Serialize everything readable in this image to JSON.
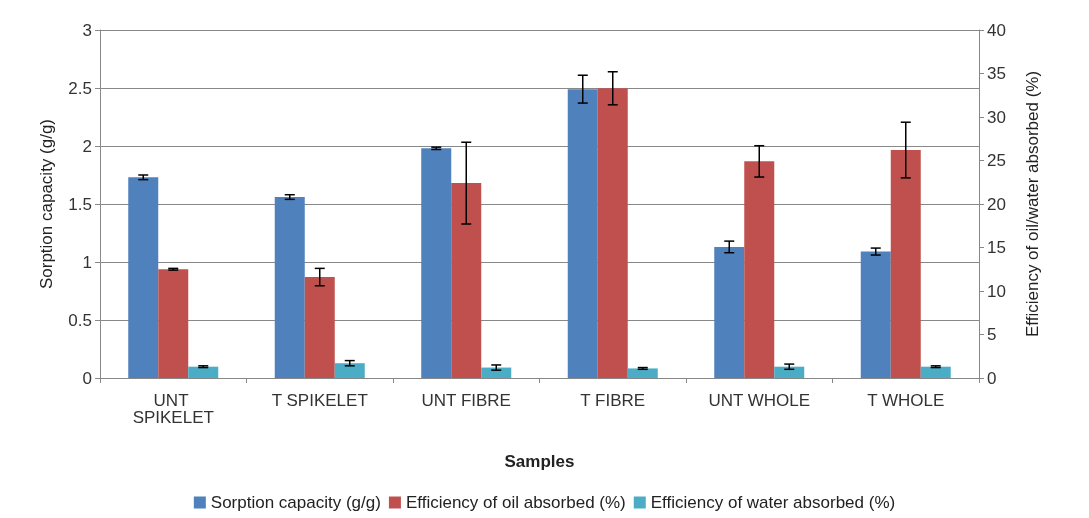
{
  "chart_data": {
    "type": "bar",
    "xlabel": "Samples",
    "ylabel": "Sorption capacity (g/g)",
    "y2label": "Efficiency of oil/water absorbed (%)",
    "categories": [
      "UNT SPIKELET",
      "T SPIKELET",
      "UNT FIBRE",
      "T FIBRE",
      "UNT WHOLE",
      "T WHOLE"
    ],
    "series": [
      {
        "name": "Sorption capacity (g/g)",
        "color": "#4f81bd",
        "values": [
          1.73,
          1.56,
          1.98,
          2.49,
          1.13,
          1.09
        ],
        "errors": [
          0.02,
          0.02,
          0.01,
          0.12,
          0.05,
          0.03
        ]
      },
      {
        "name": "Efficiency of oil absorbed (%)",
        "color": "#c0504d",
        "axis": "y2",
        "values": [
          12.5,
          11.6,
          22.4,
          33.3,
          24.9,
          26.2
        ],
        "errors": [
          0.1,
          1,
          4.7,
          1.9,
          1.8,
          3.2
        ]
      },
      {
        "name": "Efficiency of water absorbed (%)",
        "color": "#4bacc6",
        "axis": "y2",
        "values": [
          1.3,
          1.7,
          1.2,
          1.1,
          1.3,
          1.3
        ],
        "errors": [
          0.1,
          0.3,
          0.3,
          0.1,
          0.3,
          0.1
        ]
      }
    ],
    "ylim": [
      0,
      3
    ],
    "yticks": [
      0,
      0.5,
      1,
      1.5,
      2,
      2.5,
      3
    ],
    "y2lim": [
      0,
      40
    ],
    "y2ticks": [
      0,
      5,
      10,
      15,
      20,
      25,
      30,
      35,
      40
    ],
    "grid": "y",
    "legend": "bottom"
  }
}
